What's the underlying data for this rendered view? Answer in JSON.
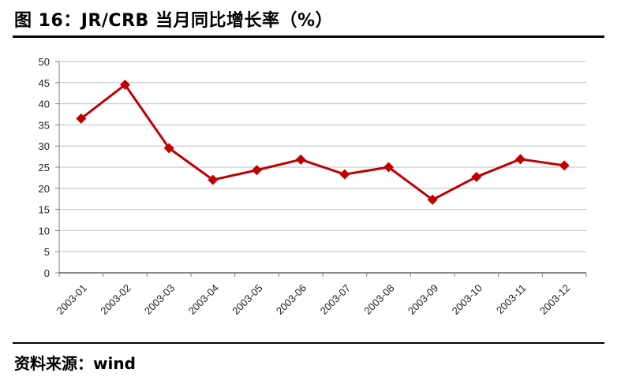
{
  "title": "图 16：JR/CRB 当月同比增长率（%）",
  "source": "资料来源：wind",
  "chart_data": {
    "type": "line",
    "title": "图 16：JR/CRB 当月同比增长率（%）",
    "xlabel": "",
    "ylabel": "",
    "categories": [
      "2003-01",
      "2003-02",
      "2003-03",
      "2003-04",
      "2003-05",
      "2003-06",
      "2003-07",
      "2003-08",
      "2003-09",
      "2003-10",
      "2003-11",
      "2003-12"
    ],
    "series": [
      {
        "values": [
          36.5,
          44.5,
          29.5,
          22.0,
          24.3,
          26.8,
          23.3,
          25.0,
          17.3,
          22.7,
          26.9,
          25.4
        ]
      }
    ],
    "ylim": [
      0,
      50
    ],
    "yticks": [
      0,
      5,
      10,
      15,
      20,
      25,
      30,
      35,
      40,
      45,
      50
    ],
    "grid": true,
    "legend": "none",
    "colors": {
      "line": "#c00000",
      "marker": "#c00000",
      "grid": "#bfbfbf",
      "axis": "#808080"
    }
  }
}
